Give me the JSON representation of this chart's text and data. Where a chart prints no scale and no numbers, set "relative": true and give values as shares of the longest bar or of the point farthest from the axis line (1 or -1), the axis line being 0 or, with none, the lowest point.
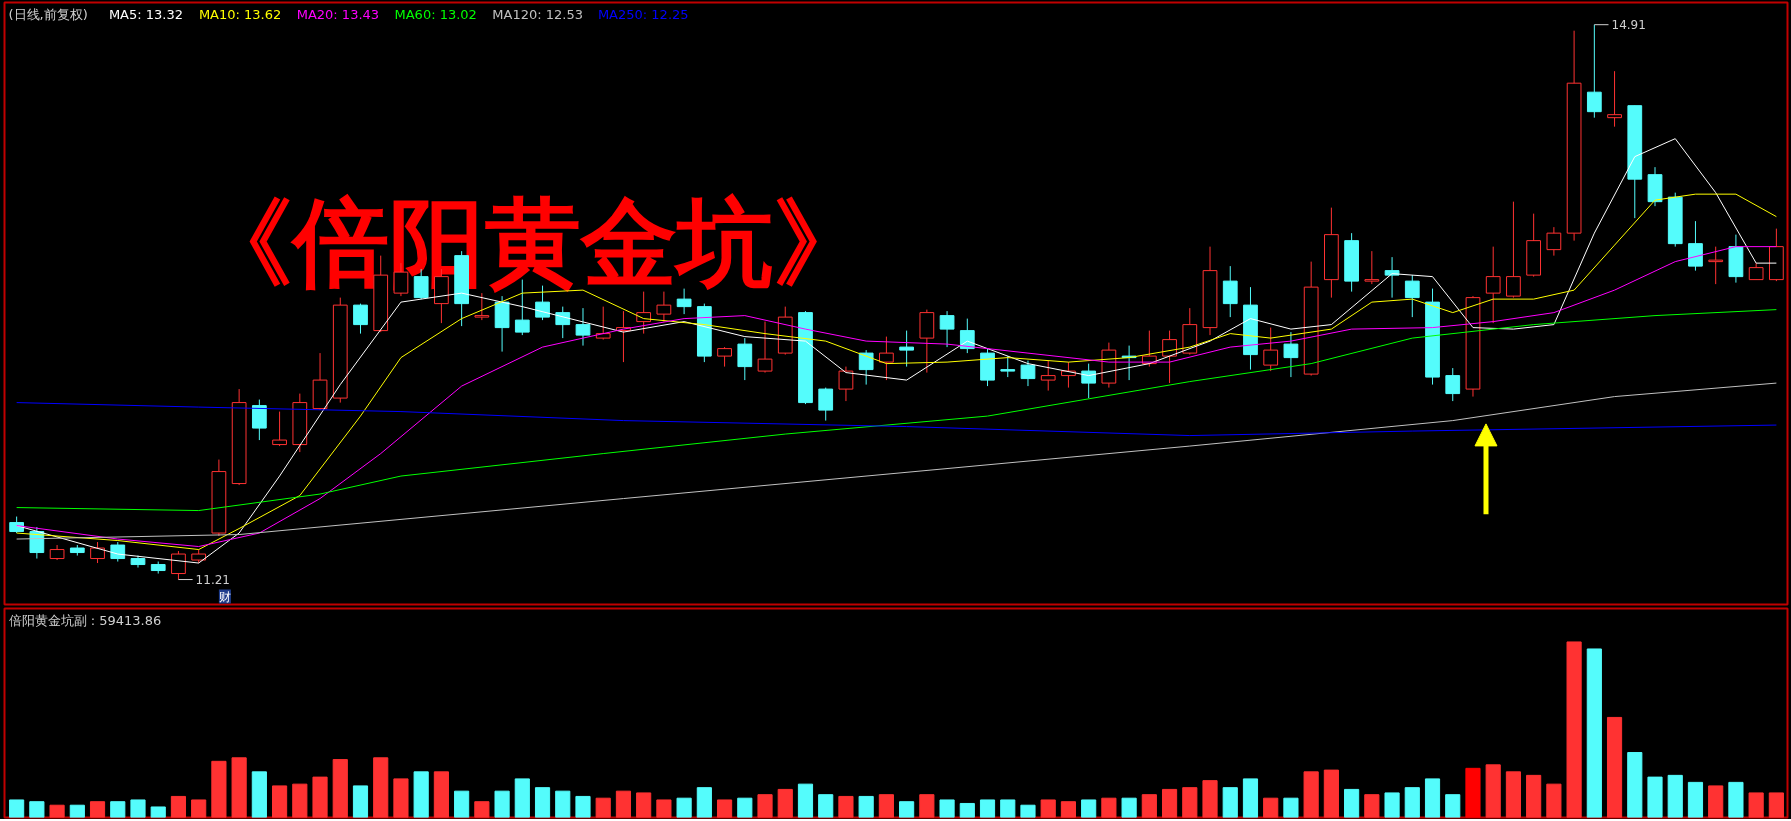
{
  "chart_data": [
    {
      "type": "candlestick",
      "title": "(日线,前复权)",
      "legend": "top left",
      "tick_labels": false,
      "categories": [
        null,
        null,
        null,
        null,
        null,
        null,
        null,
        null,
        null,
        null,
        null,
        null,
        null,
        null,
        null,
        null,
        null,
        null,
        null,
        null,
        null,
        null,
        null,
        null,
        null,
        null,
        null,
        null,
        null,
        null,
        null,
        null,
        null,
        null,
        null,
        null,
        null,
        null,
        null,
        null,
        null,
        null,
        null,
        null,
        null,
        null,
        null,
        null,
        null,
        null,
        null,
        null,
        null,
        null,
        null,
        null,
        null,
        null,
        null,
        null,
        null,
        null,
        null,
        null,
        null,
        null,
        null,
        null,
        null,
        null,
        null,
        null,
        null,
        null,
        null,
        null,
        null,
        null,
        null,
        null,
        null,
        null,
        null,
        null,
        null,
        null,
        null,
        null
      ],
      "ohlc": [
        [
          11.59,
          11.63,
          11.52,
          11.53
        ],
        [
          11.53,
          11.56,
          11.35,
          11.39
        ],
        [
          11.35,
          11.44,
          11.34,
          11.41
        ],
        [
          11.42,
          11.44,
          11.37,
          11.39
        ],
        [
          11.35,
          11.46,
          11.32,
          11.42
        ],
        [
          11.44,
          11.46,
          11.33,
          11.35
        ],
        [
          11.35,
          11.37,
          11.29,
          11.31
        ],
        [
          11.31,
          11.33,
          11.25,
          11.27
        ],
        [
          11.25,
          11.4,
          11.21,
          11.38
        ],
        [
          11.34,
          11.41,
          11.32,
          11.38
        ],
        [
          11.52,
          12.01,
          11.5,
          11.93
        ],
        [
          11.85,
          12.48,
          11.84,
          12.39
        ],
        [
          12.37,
          12.41,
          12.14,
          12.22
        ],
        [
          12.11,
          12.33,
          12.1,
          12.14
        ],
        [
          12.11,
          12.45,
          12.06,
          12.39
        ],
        [
          12.35,
          12.72,
          12.34,
          12.54
        ],
        [
          12.42,
          13.09,
          12.39,
          13.04
        ],
        [
          13.04,
          13.05,
          12.85,
          12.91
        ],
        [
          12.87,
          13.37,
          12.86,
          13.24
        ],
        [
          13.12,
          13.32,
          13.1,
          13.26
        ],
        [
          13.23,
          13.28,
          13.08,
          13.09
        ],
        [
          13.05,
          13.28,
          12.92,
          13.23
        ],
        [
          13.37,
          13.4,
          12.9,
          13.05
        ],
        [
          12.96,
          13.12,
          12.94,
          12.97
        ],
        [
          13.06,
          13.1,
          12.73,
          12.89
        ],
        [
          12.94,
          13.21,
          12.84,
          12.86
        ],
        [
          13.06,
          13.17,
          12.94,
          12.96
        ],
        [
          12.99,
          13.03,
          12.82,
          12.91
        ],
        [
          12.91,
          13.02,
          12.77,
          12.84
        ],
        [
          12.82,
          13.03,
          12.81,
          12.85
        ],
        [
          12.87,
          13.0,
          12.66,
          12.89
        ],
        [
          12.93,
          13.13,
          12.85,
          12.99
        ],
        [
          12.98,
          13.13,
          12.93,
          13.04
        ],
        [
          13.08,
          13.15,
          12.98,
          13.03
        ],
        [
          13.03,
          13.05,
          12.66,
          12.7
        ],
        [
          12.7,
          12.76,
          12.63,
          12.75
        ],
        [
          12.78,
          12.82,
          12.54,
          12.63
        ],
        [
          12.6,
          12.93,
          12.59,
          12.68
        ],
        [
          12.72,
          13.03,
          12.71,
          12.96
        ],
        [
          12.99,
          13.0,
          12.38,
          12.39
        ],
        [
          12.48,
          12.49,
          12.27,
          12.34
        ],
        [
          12.48,
          12.63,
          12.4,
          12.6
        ],
        [
          12.72,
          12.74,
          12.51,
          12.61
        ],
        [
          12.66,
          12.83,
          12.54,
          12.72
        ],
        [
          12.76,
          12.87,
          12.63,
          12.74
        ],
        [
          12.82,
          13.01,
          12.59,
          12.99
        ],
        [
          12.97,
          13.0,
          12.76,
          12.88
        ],
        [
          12.87,
          12.95,
          12.72,
          12.75
        ],
        [
          12.72,
          12.75,
          12.5,
          12.54
        ],
        [
          12.61,
          12.7,
          12.56,
          12.6
        ],
        [
          12.64,
          12.67,
          12.5,
          12.55
        ],
        [
          12.54,
          12.67,
          12.47,
          12.57
        ],
        [
          12.57,
          12.66,
          12.49,
          12.6
        ],
        [
          12.6,
          12.65,
          12.42,
          12.52
        ],
        [
          12.52,
          12.79,
          12.49,
          12.74
        ],
        [
          12.7,
          12.77,
          12.54,
          12.69
        ],
        [
          12.65,
          12.87,
          12.63,
          12.7
        ],
        [
          12.7,
          12.87,
          12.52,
          12.81
        ],
        [
          12.72,
          13.02,
          12.71,
          12.91
        ],
        [
          12.89,
          13.43,
          12.84,
          13.27
        ],
        [
          13.2,
          13.3,
          12.96,
          13.05
        ],
        [
          13.04,
          13.16,
          12.61,
          12.71
        ],
        [
          12.64,
          12.89,
          12.6,
          12.74
        ],
        [
          12.78,
          12.86,
          12.56,
          12.69
        ],
        [
          12.58,
          13.33,
          12.57,
          13.16
        ],
        [
          13.21,
          13.69,
          13.09,
          13.51
        ],
        [
          13.47,
          13.52,
          13.13,
          13.2
        ],
        [
          13.2,
          13.4,
          13.18,
          13.21
        ],
        [
          13.27,
          13.36,
          13.09,
          13.24
        ],
        [
          13.2,
          13.24,
          12.96,
          13.09
        ],
        [
          13.06,
          13.15,
          12.51,
          12.56
        ],
        [
          12.57,
          12.62,
          12.4,
          12.45
        ],
        [
          12.48,
          13.1,
          12.43,
          13.09
        ],
        [
          13.12,
          13.43,
          12.92,
          13.23
        ],
        [
          13.1,
          13.73,
          13.09,
          13.23
        ],
        [
          13.24,
          13.65,
          13.23,
          13.47
        ],
        [
          13.41,
          13.56,
          13.37,
          13.52
        ],
        [
          13.52,
          14.87,
          13.47,
          14.52
        ],
        [
          14.46,
          14.91,
          14.29,
          14.33
        ],
        [
          14.29,
          14.6,
          14.23,
          14.31
        ],
        [
          14.37,
          14.37,
          13.62,
          13.88
        ],
        [
          13.91,
          13.96,
          13.7,
          13.73
        ],
        [
          13.76,
          13.79,
          13.43,
          13.45
        ],
        [
          13.45,
          13.6,
          13.27,
          13.3
        ],
        [
          13.33,
          13.43,
          13.18,
          13.34
        ],
        [
          13.43,
          13.51,
          13.19,
          13.23
        ],
        [
          13.21,
          13.32,
          13.21,
          13.29
        ],
        [
          13.21,
          13.55,
          13.2,
          13.43
        ]
      ],
      "colors": [
        "#54fcfc",
        "#54fcfc",
        "#ff3232",
        "#54fcfc",
        "#ff3232",
        "#54fcfc",
        "#54fcfc",
        "#54fcfc",
        "#ff3232",
        "#ff3232",
        "#ff3232",
        "#ff3232",
        "#54fcfc",
        "#ff3232",
        "#ff3232",
        "#ff3232",
        "#ff3232",
        "#54fcfc",
        "#ff3232",
        "#ff3232",
        "#54fcfc",
        "#ff3232",
        "#54fcfc",
        "#ff3232",
        "#54fcfc",
        "#54fcfc",
        "#54fcfc",
        "#54fcfc",
        "#54fcfc",
        "#ff3232",
        "#ff3232",
        "#ff3232",
        "#ff3232",
        "#54fcfc",
        "#54fcfc",
        "#ff3232",
        "#54fcfc",
        "#ff3232",
        "#ff3232",
        "#54fcfc",
        "#54fcfc",
        "#ff3232",
        "#54fcfc",
        "#ff3232",
        "#54fcfc",
        "#ff3232",
        "#54fcfc",
        "#54fcfc",
        "#54fcfc",
        "#54fcfc",
        "#54fcfc",
        "#ff3232",
        "#ff3232",
        "#54fcfc",
        "#ff3232",
        "#54fcfc",
        "#ff3232",
        "#ff3232",
        "#ff3232",
        "#ff3232",
        "#54fcfc",
        "#54fcfc",
        "#ff3232",
        "#54fcfc",
        "#ff3232",
        "#ff3232",
        "#54fcfc",
        "#ff3232",
        "#54fcfc",
        "#54fcfc",
        "#54fcfc",
        "#54fcfc",
        "#ff3232",
        "#ff3232",
        "#ff3232",
        "#ff3232",
        "#ff3232",
        "#ff3232",
        "#54fcfc",
        "#ff3232",
        "#54fcfc",
        "#54fcfc",
        "#54fcfc",
        "#54fcfc",
        "#ff3232",
        "#54fcfc",
        "#ff3232",
        "#ff3232"
      ],
      "series": [
        {
          "type": "line",
          "name": "MA5: 13.32",
          "color": "#ffffff",
          "values": [
            11.57,
            null,
            null,
            null,
            null,
            11.38,
            null,
            null,
            null,
            11.32,
            null,
            11.52,
            null,
            11.9,
            null,
            null,
            12.51,
            null,
            null,
            13.06,
            null,
            null,
            13.12,
            null,
            null,
            13.03,
            null,
            null,
            null,
            null,
            12.86,
            null,
            null,
            12.93,
            null,
            null,
            12.83,
            null,
            null,
            12.8,
            null,
            12.59,
            null,
            null,
            12.54,
            null,
            null,
            12.8,
            null,
            null,
            12.65,
            null,
            null,
            12.57,
            null,
            null,
            12.65,
            null,
            null,
            12.8,
            null,
            12.95,
            null,
            12.88,
            null,
            12.91,
            null,
            null,
            13.25,
            null,
            13.23,
            null,
            12.89,
            null,
            12.88,
            null,
            12.91,
            null,
            13.52,
            null,
            14.03,
            null,
            14.15,
            null,
            13.79,
            null,
            13.32,
            13.32
          ]
        },
        {
          "type": "line",
          "name": "MA10: 13.62",
          "color": "#ffff00",
          "values": [
            11.52,
            null,
            null,
            null,
            null,
            11.47,
            null,
            null,
            null,
            11.41,
            null,
            11.55,
            null,
            null,
            11.77,
            null,
            null,
            12.3,
            null,
            12.69,
            null,
            null,
            12.95,
            null,
            null,
            13.12,
            null,
            null,
            13.14,
            null,
            null,
            12.95,
            null,
            null,
            12.91,
            null,
            null,
            12.85,
            null,
            null,
            12.8,
            null,
            null,
            12.65,
            null,
            null,
            12.66,
            null,
            null,
            12.69,
            null,
            null,
            12.66,
            null,
            null,
            12.69,
            null,
            null,
            12.76,
            null,
            12.85,
            null,
            12.82,
            null,
            null,
            12.88,
            null,
            13.06,
            null,
            13.08,
            null,
            12.99,
            null,
            13.08,
            null,
            13.08,
            null,
            13.14,
            null,
            13.44,
            null,
            13.74,
            null,
            13.78,
            null,
            13.78,
            null,
            13.63
          ]
        },
        {
          "type": "line",
          "name": "MA20: 13.43",
          "color": "#ff00ff",
          "values": [
            11.57,
            null,
            null,
            null,
            null,
            11.48,
            null,
            null,
            null,
            11.43,
            null,
            null,
            11.52,
            null,
            null,
            11.75,
            null,
            null,
            12.05,
            null,
            null,
            null,
            12.5,
            null,
            null,
            null,
            12.76,
            null,
            null,
            null,
            12.88,
            null,
            null,
            12.95,
            null,
            null,
            12.97,
            null,
            null,
            12.88,
            null,
            null,
            12.8,
            null,
            null,
            null,
            12.78,
            null,
            null,
            null,
            12.72,
            null,
            null,
            null,
            12.66,
            null,
            null,
            12.66,
            null,
            null,
            12.76,
            null,
            null,
            12.8,
            null,
            null,
            12.88,
            null,
            null,
            null,
            12.89,
            null,
            null,
            12.93,
            null,
            null,
            12.99,
            null,
            null,
            13.14,
            null,
            null,
            13.33,
            null,
            null,
            13.43,
            null,
            13.43
          ]
        },
        {
          "type": "line",
          "name": "MA60: 13.02",
          "color": "#00ff00",
          "values": [
            11.69,
            null,
            null,
            null,
            null,
            null,
            null,
            null,
            null,
            11.67,
            null,
            null,
            null,
            null,
            null,
            11.78,
            null,
            null,
            null,
            11.9,
            null,
            null,
            null,
            null,
            null,
            null,
            null,
            null,
            null,
            12.05,
            null,
            null,
            null,
            null,
            null,
            null,
            null,
            null,
            12.18,
            null,
            null,
            null,
            null,
            null,
            null,
            null,
            null,
            null,
            12.3,
            null,
            null,
            null,
            null,
            null,
            null,
            null,
            null,
            null,
            12.53,
            null,
            null,
            null,
            null,
            null,
            12.65,
            null,
            null,
            null,
            null,
            12.82,
            null,
            null,
            null,
            null,
            null,
            12.91,
            null,
            null,
            null,
            null,
            null,
            12.97,
            null,
            null,
            null,
            null,
            null,
            13.01
          ]
        },
        {
          "type": "line",
          "name": "MA120: 12.53",
          "color": "#c0c0c0",
          "values": [
            11.48,
            null,
            null,
            null,
            null,
            null,
            null,
            null,
            null,
            null,
            null,
            11.51,
            null,
            null,
            null,
            null,
            null,
            null,
            null,
            null,
            null,
            null,
            null,
            null,
            null,
            null,
            null,
            null,
            null,
            null,
            11.75,
            null,
            null,
            null,
            null,
            null,
            null,
            null,
            null,
            null,
            null,
            null,
            null,
            null,
            null,
            null,
            null,
            null,
            null,
            null,
            null,
            null,
            null,
            null,
            null,
            null,
            null,
            null,
            12.1,
            null,
            null,
            null,
            null,
            null,
            null,
            null,
            null,
            null,
            null,
            null,
            null,
            12.27,
            null,
            null,
            null,
            null,
            null,
            null,
            null,
            12.43,
            null,
            null,
            null,
            null,
            null,
            null,
            null,
            12.52
          ]
        },
        {
          "type": "line",
          "name": "MA250: 12.25",
          "color": "#0000ff",
          "values": [
            12.39,
            null,
            null,
            null,
            null,
            null,
            null,
            null,
            null,
            12.36,
            null,
            null,
            null,
            null,
            null,
            null,
            null,
            null,
            null,
            12.33,
            null,
            null,
            null,
            null,
            null,
            null,
            null,
            null,
            null,
            null,
            12.27,
            null,
            null,
            null,
            null,
            null,
            null,
            null,
            null,
            null,
            null,
            null,
            null,
            null,
            12.23,
            null,
            null,
            null,
            null,
            null,
            null,
            null,
            null,
            null,
            null,
            null,
            null,
            null,
            12.17,
            null,
            null,
            null,
            null,
            null,
            null,
            null,
            null,
            null,
            null,
            12.2,
            null,
            null,
            null,
            null,
            null,
            null,
            null,
            null,
            null,
            null,
            null,
            null,
            null,
            null,
            null,
            null,
            null,
            12.24
          ]
        }
      ],
      "annotations": [
        "《倍阳黄金坑》",
        "14.91",
        "11.21",
        "财"
      ]
    },
    {
      "type": "bar",
      "relative": true,
      "title": "倍阳黄金坑副 : 59413.86",
      "tick_labels": false,
      "categories": [
        null,
        null,
        null,
        null,
        null,
        null,
        null,
        null,
        null,
        null,
        null,
        null,
        null,
        null,
        null,
        null,
        null,
        null,
        null,
        null,
        null,
        null,
        null,
        null,
        null,
        null,
        null,
        null,
        null,
        null,
        null,
        null,
        null,
        null,
        null,
        null,
        null,
        null,
        null,
        null,
        null,
        null,
        null,
        null,
        null,
        null,
        null,
        null,
        null,
        null,
        null,
        null,
        null,
        null,
        null,
        null,
        null,
        null,
        null,
        null,
        null,
        null,
        null,
        null,
        null,
        null,
        null,
        null,
        null,
        null,
        null,
        null,
        null,
        null,
        null,
        null,
        null,
        null,
        null,
        null,
        null,
        null,
        null,
        null,
        null,
        null,
        null,
        null
      ],
      "values": [
        0.1,
        0.09,
        0.07,
        0.07,
        0.09,
        0.09,
        0.1,
        0.06,
        0.12,
        0.1,
        0.32,
        0.34,
        0.26,
        0.18,
        0.19,
        0.23,
        0.33,
        0.18,
        0.34,
        0.22,
        0.26,
        0.26,
        0.15,
        0.09,
        0.15,
        0.22,
        0.17,
        0.15,
        0.12,
        0.11,
        0.15,
        0.14,
        0.1,
        0.11,
        0.17,
        0.1,
        0.11,
        0.13,
        0.16,
        0.19,
        0.13,
        0.12,
        0.12,
        0.13,
        0.09,
        0.13,
        0.1,
        0.08,
        0.1,
        0.1,
        0.07,
        0.1,
        0.09,
        0.1,
        0.11,
        0.11,
        0.13,
        0.16,
        0.17,
        0.21,
        0.17,
        0.22,
        0.11,
        0.11,
        0.26,
        0.27,
        0.16,
        0.13,
        0.14,
        0.17,
        0.22,
        0.13,
        0.28,
        0.3,
        0.26,
        0.24,
        0.19,
        1,
        0.96,
        0.57,
        0.37,
        0.23,
        0.24,
        0.2,
        0.18,
        0.2,
        0.14,
        0.14
      ],
      "colors": [
        "#54fcfc",
        "#54fcfc",
        "#ff3232",
        "#54fcfc",
        "#ff3232",
        "#54fcfc",
        "#54fcfc",
        "#54fcfc",
        "#ff3232",
        "#ff3232",
        "#ff3232",
        "#ff3232",
        "#54fcfc",
        "#ff3232",
        "#ff3232",
        "#ff3232",
        "#ff3232",
        "#54fcfc",
        "#ff3232",
        "#ff3232",
        "#54fcfc",
        "#ff3232",
        "#54fcfc",
        "#ff3232",
        "#54fcfc",
        "#54fcfc",
        "#54fcfc",
        "#54fcfc",
        "#54fcfc",
        "#ff3232",
        "#ff3232",
        "#ff3232",
        "#ff3232",
        "#54fcfc",
        "#54fcfc",
        "#ff3232",
        "#54fcfc",
        "#ff3232",
        "#ff3232",
        "#54fcfc",
        "#54fcfc",
        "#ff3232",
        "#54fcfc",
        "#ff3232",
        "#54fcfc",
        "#ff3232",
        "#54fcfc",
        "#54fcfc",
        "#54fcfc",
        "#54fcfc",
        "#54fcfc",
        "#ff3232",
        "#ff3232",
        "#54fcfc",
        "#ff3232",
        "#54fcfc",
        "#ff3232",
        "#ff3232",
        "#ff3232",
        "#ff3232",
        "#54fcfc",
        "#54fcfc",
        "#ff3232",
        "#54fcfc",
        "#ff3232",
        "#ff3232",
        "#54fcfc",
        "#ff3232",
        "#54fcfc",
        "#54fcfc",
        "#54fcfc",
        "#54fcfc",
        "#ff0000",
        "#ff3232",
        "#ff3232",
        "#ff3232",
        "#ff3232",
        "#ff3232",
        "#54fcfc",
        "#ff3232",
        "#54fcfc",
        "#54fcfc",
        "#54fcfc",
        "#54fcfc",
        "#ff3232",
        "#54fcfc",
        "#ff3232",
        "#ff3232"
      ]
    }
  ]
}
